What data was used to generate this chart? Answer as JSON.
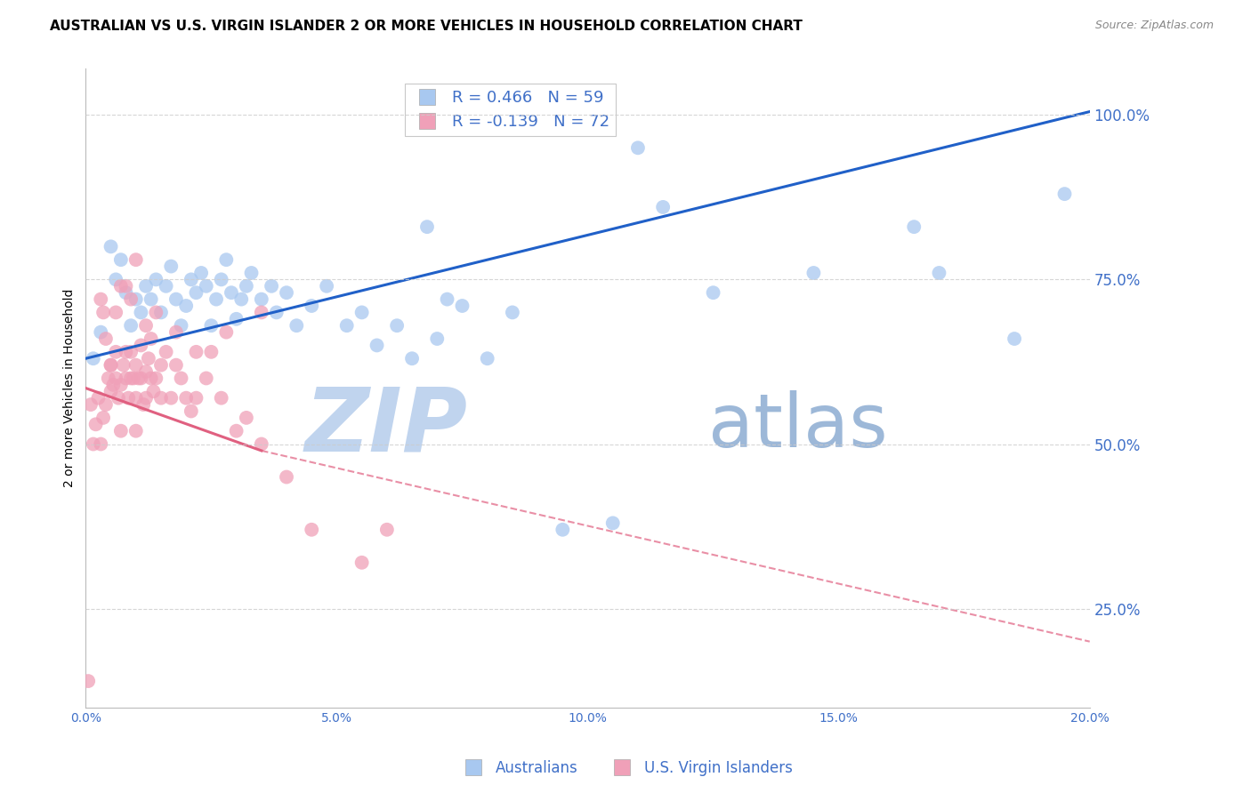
{
  "title": "AUSTRALIAN VS U.S. VIRGIN ISLANDER 2 OR MORE VEHICLES IN HOUSEHOLD CORRELATION CHART",
  "source": "Source: ZipAtlas.com",
  "ylabel": "2 or more Vehicles in Household",
  "xlabel_ticks": [
    "0.0%",
    "5.0%",
    "10.0%",
    "15.0%",
    "20.0%"
  ],
  "xlabel_vals": [
    0.0,
    5.0,
    10.0,
    15.0,
    20.0
  ],
  "ylabel_ticks": [
    "25.0%",
    "50.0%",
    "75.0%",
    "100.0%"
  ],
  "ylabel_vals": [
    25.0,
    50.0,
    75.0,
    100.0
  ],
  "xlim": [
    0.0,
    20.0
  ],
  "ylim": [
    10.0,
    107.0
  ],
  "legend_entries": [
    {
      "label": "R = 0.466   N = 59",
      "color": "#A8C8F0"
    },
    {
      "label": "R = -0.139   N = 72",
      "color": "#F0A0B8"
    }
  ],
  "watermark_zip": "ZIP",
  "watermark_atlas": "atlas",
  "watermark_color_zip": "#C0D4EE",
  "watermark_color_atlas": "#9DB8D8",
  "background_color": "#FFFFFF",
  "grid_color": "#CCCCCC",
  "blue_color": "#A8C8F0",
  "blue_line_color": "#2060C8",
  "pink_color": "#F0A0B8",
  "pink_line_color": "#E06080",
  "right_axis_color": "#4070C8",
  "title_fontsize": 11,
  "source_fontsize": 9,
  "blue_scatter": {
    "x": [
      0.15,
      0.3,
      0.5,
      0.6,
      0.7,
      0.8,
      0.9,
      1.0,
      1.1,
      1.2,
      1.3,
      1.4,
      1.5,
      1.6,
      1.7,
      1.8,
      1.9,
      2.0,
      2.1,
      2.2,
      2.3,
      2.4,
      2.5,
      2.6,
      2.7,
      2.8,
      2.9,
      3.0,
      3.1,
      3.2,
      3.3,
      3.5,
      3.7,
      3.8,
      4.0,
      4.2,
      4.5,
      4.8,
      5.2,
      5.5,
      5.8,
      6.2,
      6.5,
      7.0,
      7.5,
      8.0,
      8.5,
      9.5,
      10.5,
      11.0,
      11.5,
      12.5,
      14.5,
      16.5,
      17.0,
      18.5,
      19.5,
      6.8,
      7.2
    ],
    "y": [
      63,
      67,
      80,
      75,
      78,
      73,
      68,
      72,
      70,
      74,
      72,
      75,
      70,
      74,
      77,
      72,
      68,
      71,
      75,
      73,
      76,
      74,
      68,
      72,
      75,
      78,
      73,
      69,
      72,
      74,
      76,
      72,
      74,
      70,
      73,
      68,
      71,
      74,
      68,
      70,
      65,
      68,
      63,
      66,
      71,
      63,
      70,
      37,
      38,
      95,
      86,
      73,
      76,
      83,
      76,
      66,
      88,
      83,
      72
    ]
  },
  "pink_scatter": {
    "x": [
      0.05,
      0.1,
      0.15,
      0.2,
      0.25,
      0.3,
      0.35,
      0.4,
      0.45,
      0.5,
      0.5,
      0.55,
      0.6,
      0.6,
      0.65,
      0.7,
      0.7,
      0.75,
      0.8,
      0.8,
      0.85,
      0.9,
      0.9,
      0.95,
      1.0,
      1.0,
      1.0,
      1.05,
      1.1,
      1.1,
      1.15,
      1.2,
      1.2,
      1.25,
      1.3,
      1.3,
      1.35,
      1.4,
      1.5,
      1.5,
      1.6,
      1.7,
      1.8,
      1.9,
      2.0,
      2.1,
      2.2,
      2.4,
      2.5,
      2.7,
      3.0,
      3.2,
      3.5,
      4.0,
      4.5,
      5.5,
      6.0,
      0.3,
      0.35,
      0.4,
      0.5,
      0.6,
      0.7,
      0.8,
      0.9,
      1.0,
      1.2,
      1.4,
      1.8,
      2.2,
      2.8,
      3.5
    ],
    "y": [
      14,
      56,
      50,
      53,
      57,
      50,
      54,
      56,
      60,
      58,
      62,
      59,
      60,
      64,
      57,
      52,
      59,
      62,
      60,
      64,
      57,
      60,
      64,
      60,
      62,
      57,
      52,
      60,
      60,
      65,
      56,
      61,
      57,
      63,
      60,
      66,
      58,
      60,
      57,
      62,
      64,
      57,
      62,
      60,
      57,
      55,
      57,
      60,
      64,
      57,
      52,
      54,
      50,
      45,
      37,
      32,
      37,
      72,
      70,
      66,
      62,
      70,
      74,
      74,
      72,
      78,
      68,
      70,
      67,
      64,
      67,
      70
    ]
  },
  "blue_line": {
    "x0": 0.0,
    "x1": 20.0,
    "y0": 63.0,
    "y1": 100.5
  },
  "pink_line_solid": {
    "x0": 0.0,
    "x1": 3.5,
    "y0": 58.5,
    "y1": 49.0
  },
  "pink_line_dashed": {
    "x0": 3.5,
    "x1": 20.0,
    "y0": 49.0,
    "y1": 20.0
  }
}
